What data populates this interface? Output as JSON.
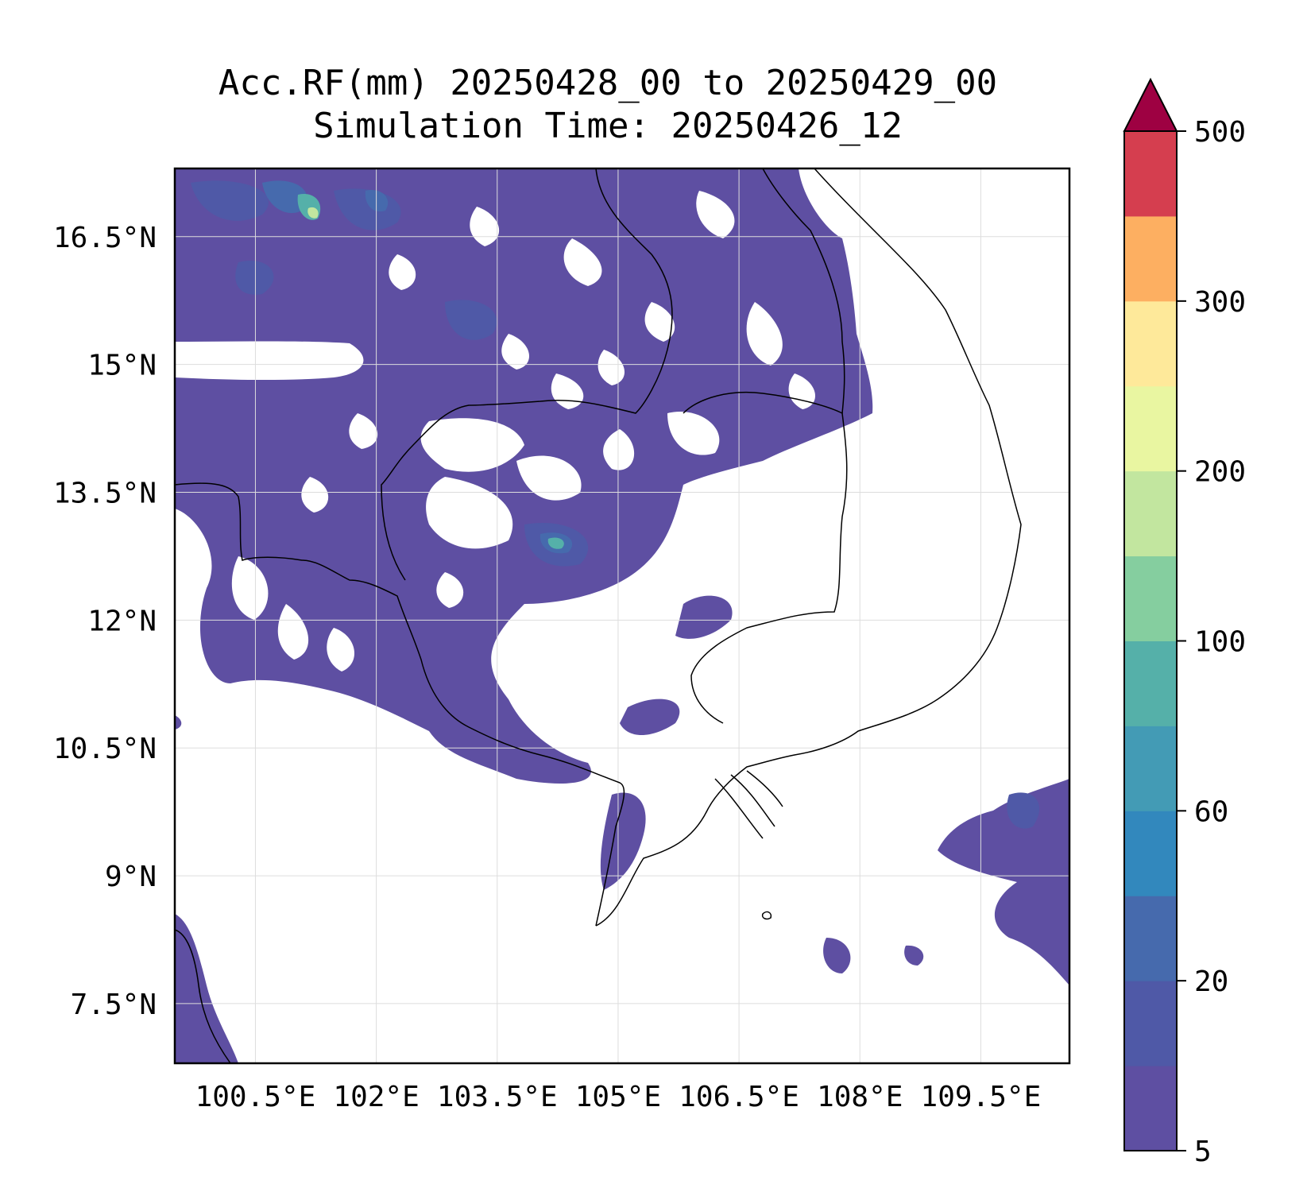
{
  "figure": {
    "title_line1": "Acc.RF(mm) 20250428_00 to 20250429_00",
    "title_line2": "Simulation Time: 20250426_12"
  },
  "map": {
    "lon_range": [
      99.5,
      110.6
    ],
    "lat_range": [
      6.8,
      17.3
    ],
    "lon_ticks": [
      "100.5°E",
      "102°E",
      "103.5°E",
      "105°E",
      "106.5°E",
      "108°E",
      "109.5°E"
    ],
    "lat_ticks": [
      "16.5°N",
      "15°N",
      "13.5°N",
      "12°N",
      "10.5°N",
      "9°N",
      "7.5°N"
    ],
    "gridlines": true
  },
  "colorbar": {
    "extend": "max",
    "tick_labels": [
      "5",
      "20",
      "60",
      "100",
      "200",
      "300",
      "500"
    ],
    "levels": [
      5,
      10,
      20,
      40,
      60,
      80,
      100,
      150,
      200,
      250,
      300,
      400,
      500
    ],
    "colors": [
      "#5e4fa2",
      "#4f59a7",
      "#466aad",
      "#3288bd",
      "#439bb5",
      "#55b0a9",
      "#85ce9f",
      "#c2e69f",
      "#e9f6a1",
      "#fee99a",
      "#fdaf61",
      "#d53e4f",
      "#9e0142"
    ]
  }
}
